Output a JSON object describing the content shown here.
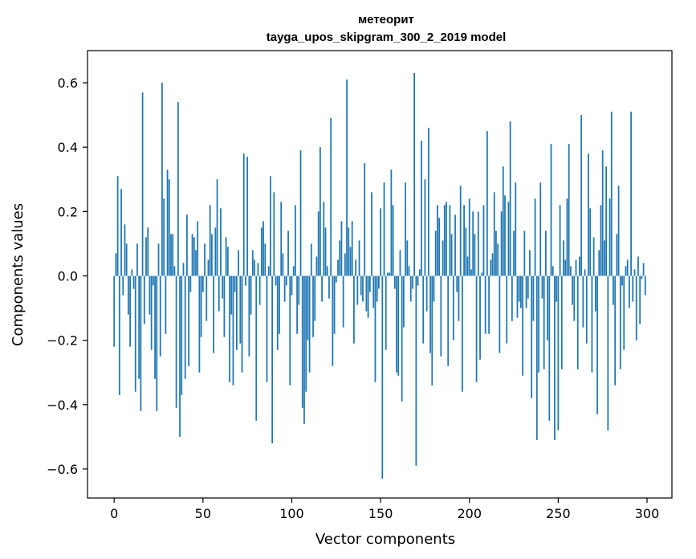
{
  "chart_data": {
    "type": "bar",
    "title_line1": "метеорит",
    "title_line2": "tayga_upos_skipgram_300_2_2019 model",
    "xlabel": "Vector components",
    "ylabel": "Components values",
    "xlim": [
      -15,
      314
    ],
    "ylim": [
      -0.69,
      0.7
    ],
    "xticks": [
      0,
      50,
      100,
      150,
      200,
      250,
      300
    ],
    "xtick_labels": [
      "0",
      "50",
      "100",
      "150",
      "200",
      "250",
      "300"
    ],
    "yticks": [
      -0.6,
      -0.4,
      -0.2,
      0.0,
      0.2,
      0.4,
      0.6
    ],
    "ytick_labels": [
      "−0.6",
      "−0.4",
      "−0.2",
      "0.0",
      "0.2",
      "0.4",
      "0.6"
    ],
    "bar_color": "#1f77b4",
    "values": [
      -0.22,
      0.07,
      0.31,
      -0.37,
      0.27,
      -0.06,
      0.16,
      0.1,
      -0.12,
      -0.22,
      0.02,
      -0.04,
      -0.36,
      0.1,
      -0.32,
      -0.42,
      0.57,
      -0.15,
      0.12,
      0.15,
      -0.12,
      -0.23,
      -0.03,
      -0.32,
      -0.42,
      0.1,
      -0.25,
      0.6,
      0.24,
      -0.18,
      0.33,
      0.3,
      0.13,
      0.13,
      0.03,
      -0.41,
      0.54,
      -0.5,
      -0.37,
      0.04,
      -0.32,
      0.19,
      -0.28,
      -0.05,
      0.13,
      0.12,
      0.08,
      0.17,
      -0.3,
      -0.19,
      -0.05,
      0.1,
      -0.14,
      0.05,
      0.22,
      0.13,
      -0.24,
      0.15,
      0.3,
      -0.11,
      0.21,
      -0.07,
      -0.19,
      0.12,
      0.09,
      -0.33,
      -0.12,
      -0.34,
      -0.05,
      -0.23,
      0.08,
      -0.21,
      -0.3,
      0.38,
      -0.03,
      0.37,
      -0.25,
      -0.12,
      0.08,
      0.05,
      -0.45,
      0.04,
      -0.09,
      0.15,
      0.17,
      0.1,
      -0.33,
      0.03,
      0.31,
      -0.52,
      0.26,
      -0.03,
      -0.23,
      -0.18,
      0.23,
      0.07,
      -0.08,
      -0.03,
      0.14,
      -0.34,
      -0.06,
      0.03,
      0.22,
      -0.18,
      -0.09,
      0.39,
      -0.41,
      -0.46,
      -0.36,
      -0.2,
      -0.3,
      0.1,
      -0.19,
      -0.14,
      0.06,
      0.2,
      0.4,
      -0.08,
      0.23,
      0.15,
      0.03,
      -0.07,
      0.49,
      -0.28,
      -0.18,
      -0.02,
      0.05,
      0.11,
      0.17,
      -0.16,
      0.07,
      0.61,
      0.15,
      0.09,
      0.17,
      -0.21,
      0.05,
      -0.09,
      0.11,
      -0.06,
      -0.08,
      0.35,
      -0.11,
      -0.13,
      -0.05,
      0.26,
      -0.1,
      -0.33,
      -0.08,
      -0.04,
      0.21,
      -0.63,
      0.29,
      -0.23,
      0.01,
      0.01,
      0.33,
      0.22,
      -0.04,
      -0.3,
      -0.31,
      0.08,
      -0.39,
      -0.16,
      0.29,
      0.11,
      0.03,
      -0.08,
      -0.04,
      0.63,
      -0.59,
      -0.03,
      0.02,
      0.42,
      -0.21,
      0.3,
      -0.11,
      0.46,
      -0.24,
      -0.34,
      -0.08,
      0.14,
      0.22,
      0.18,
      -0.25,
      0.11,
      0.22,
      0.23,
      -0.28,
      0.22,
      0.13,
      -0.2,
      0.19,
      -0.05,
      -0.14,
      0.28,
      -0.36,
      0.22,
      0.15,
      0.06,
      0.24,
      0.02,
      0.2,
      0.13,
      -0.33,
      0.2,
      -0.26,
      0.01,
      0.22,
      -0.18,
      0.45,
      -0.18,
      0.05,
      0.07,
      0.26,
      0.14,
      0.1,
      -0.24,
      0.2,
      0.34,
      0.25,
      -0.21,
      0.23,
      0.48,
      -0.14,
      0.14,
      0.29,
      -0.13,
      -0.08,
      -0.1,
      -0.31,
      0.14,
      -0.1,
      -0.07,
      0.08,
      -0.38,
      -0.14,
      0.24,
      -0.51,
      -0.3,
      0.29,
      -0.07,
      -0.29,
      0.14,
      -0.2,
      -0.45,
      0.41,
      0.03,
      -0.51,
      -0.08,
      -0.48,
      0.22,
      -0.29,
      0.11,
      0.05,
      0.24,
      0.41,
      0.03,
      -0.09,
      -0.14,
      0.05,
      -0.29,
      0.06,
      0.5,
      -0.16,
      0.02,
      -0.21,
      0.38,
      0.21,
      -0.3,
      0.12,
      -0.11,
      -0.43,
      0.08,
      0.22,
      0.39,
      0.11,
      0.34,
      -0.48,
      0.24,
      0.51,
      -0.09,
      -0.34,
      0.13,
      0.28,
      -0.29,
      -0.03,
      -0.23,
      0.03,
      0.05,
      -0.1,
      0.51,
      -0.08,
      0.02,
      -0.2,
      0.06,
      -0.15,
      -0.01,
      0.04,
      -0.06
    ]
  }
}
